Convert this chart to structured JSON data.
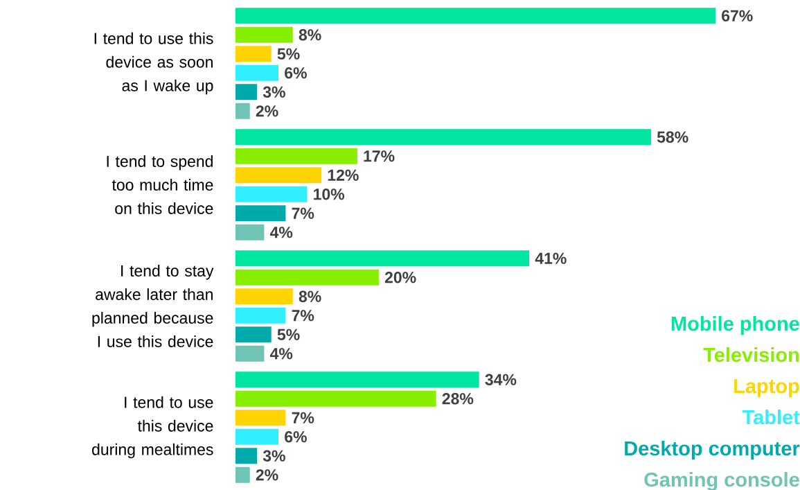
{
  "chart_data": {
    "type": "bar",
    "orientation": "horizontal",
    "tick_labels": "y",
    "legend": "bottom right",
    "categories": [
      "I tend to use this device as soon as I wake up",
      "I tend to spend too much time on this device",
      "I tend to stay awake later than planned because I use this device",
      "I tend to use this device during mealtimes"
    ],
    "series": [
      {
        "name": "Mobile phone",
        "color": "#00e5a0",
        "values": [
          67,
          58,
          41,
          34
        ],
        "value_labels": [
          "67%",
          "58%",
          "41%",
          "34%"
        ]
      },
      {
        "name": "Television",
        "color": "#88ee00",
        "values": [
          8,
          17,
          20,
          28
        ],
        "value_labels": [
          "8%",
          "17%",
          "20%",
          "28%"
        ]
      },
      {
        "name": "Laptop",
        "color": "#ffd400",
        "values": [
          5,
          12,
          8,
          7
        ],
        "value_labels": [
          "5%",
          "12%",
          "8%",
          "7%"
        ]
      },
      {
        "name": "Tablet",
        "color": "#33eeff",
        "values": [
          6,
          10,
          7,
          6
        ],
        "value_labels": [
          "6%",
          "10%",
          "7%",
          "6%"
        ]
      },
      {
        "name": "Desktop computer",
        "color": "#00aaaa",
        "values": [
          3,
          7,
          5,
          3
        ],
        "value_labels": [
          "3%",
          "7%",
          "5%",
          "3%"
        ]
      },
      {
        "name": "Gaming console",
        "color": "#70c4b4",
        "values": [
          2,
          4,
          4,
          2
        ],
        "value_labels": [
          "2%",
          "4%",
          "4%",
          "2%"
        ]
      }
    ]
  }
}
